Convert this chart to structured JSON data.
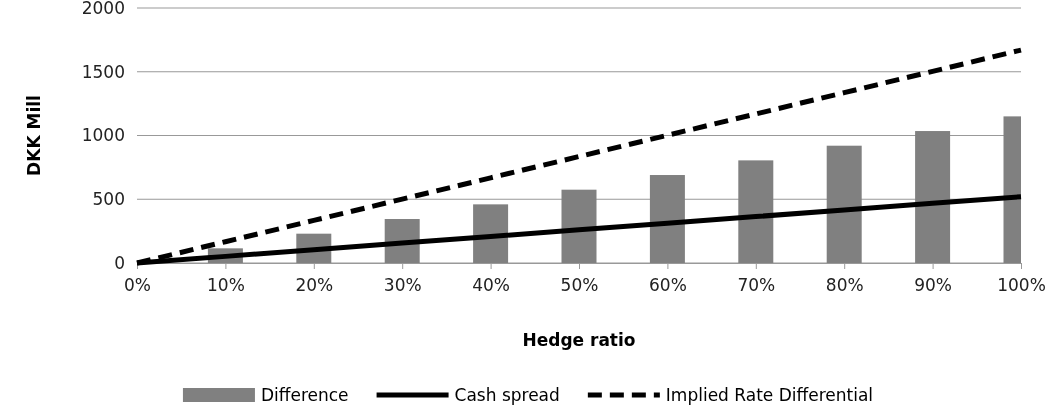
{
  "chart_data": {
    "type": "bar",
    "xlabel": "Hedge ratio",
    "ylabel": "DKK Mill",
    "categories": [
      "0%",
      "10%",
      "20%",
      "30%",
      "40%",
      "50%",
      "60%",
      "70%",
      "80%",
      "90%",
      "100%"
    ],
    "series": [
      {
        "name": "Difference",
        "color": "#808080",
        "values": [
          0,
          115,
          230,
          345,
          460,
          575,
          690,
          805,
          920,
          1035,
          1150
        ]
      },
      {
        "name": "Cash spread",
        "type": "line",
        "color": "#000000",
        "line_style": "solid",
        "values": [
          0,
          52,
          104,
          156,
          208,
          260,
          312,
          364,
          416,
          468,
          520
        ]
      },
      {
        "name": "Implied Rate Differential",
        "type": "line",
        "color": "#000000",
        "line_style": "dashed",
        "values": [
          0,
          167,
          334,
          501,
          668,
          835,
          1002,
          1169,
          1336,
          1503,
          1670
        ]
      }
    ],
    "ylim": [
      0,
      2000
    ],
    "yticks": [
      0,
      500,
      1000,
      1500,
      2000
    ],
    "grid": "y",
    "legend": "bottom"
  }
}
